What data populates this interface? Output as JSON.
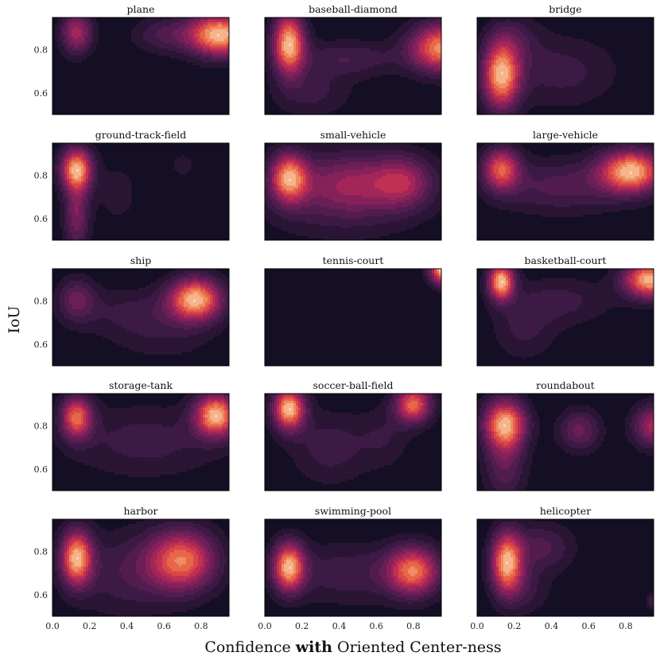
{
  "chart_data": {
    "type": "heatmap",
    "subtype": "kde-contour",
    "rows": 5,
    "cols": 3,
    "xlabel_parts": [
      "Confidence ",
      "with",
      " Oriented Center-ness"
    ],
    "ylabel": "IoU",
    "xlim": [
      0.0,
      0.95
    ],
    "ylim": [
      0.5,
      0.95
    ],
    "xticks": [
      0.0,
      0.2,
      0.4,
      0.6,
      0.8
    ],
    "xtick_labels": [
      "0.0",
      "0.2",
      "0.4",
      "0.6",
      "0.8"
    ],
    "yticks": [
      0.6,
      0.8
    ],
    "ytick_labels": [
      "0.6",
      "0.8"
    ],
    "colors": {
      "background": "#140f24",
      "levels": [
        "#140f24",
        "#2a1535",
        "#3d1a45",
        "#521d4e",
        "#6b1f56",
        "#86215a",
        "#a32659",
        "#c03052",
        "#d8474a",
        "#e86649",
        "#f08d64",
        "#f6b48b",
        "#fbd9bb"
      ]
    },
    "panels": [
      {
        "title": "plane",
        "blobs": [
          {
            "x": 0.13,
            "y": 0.88,
            "sx": 0.06,
            "sy": 0.07,
            "w": 0.55
          },
          {
            "x": 0.9,
            "y": 0.87,
            "sx": 0.12,
            "sy": 0.07,
            "w": 1.0
          },
          {
            "x": 0.6,
            "y": 0.87,
            "sx": 0.12,
            "sy": 0.06,
            "w": 0.25
          }
        ]
      },
      {
        "title": "baseball-diamond",
        "blobs": [
          {
            "x": 0.13,
            "y": 0.83,
            "sx": 0.06,
            "sy": 0.1,
            "w": 1.0
          },
          {
            "x": 0.95,
            "y": 0.81,
            "sx": 0.12,
            "sy": 0.08,
            "w": 0.9
          },
          {
            "x": 0.45,
            "y": 0.76,
            "sx": 0.2,
            "sy": 0.06,
            "w": 0.25
          },
          {
            "x": 0.25,
            "y": 0.6,
            "sx": 0.15,
            "sy": 0.08,
            "w": 0.2
          }
        ]
      },
      {
        "title": "bridge",
        "blobs": [
          {
            "x": 0.13,
            "y": 0.68,
            "sx": 0.07,
            "sy": 0.11,
            "w": 1.0
          },
          {
            "x": 0.45,
            "y": 0.7,
            "sx": 0.22,
            "sy": 0.12,
            "w": 0.22
          },
          {
            "x": 0.2,
            "y": 0.85,
            "sx": 0.1,
            "sy": 0.08,
            "w": 0.2
          }
        ]
      },
      {
        "title": "ground-track-field",
        "blobs": [
          {
            "x": 0.13,
            "y": 0.83,
            "sx": 0.06,
            "sy": 0.07,
            "w": 1.0
          },
          {
            "x": 0.13,
            "y": 0.62,
            "sx": 0.05,
            "sy": 0.12,
            "w": 0.45
          },
          {
            "x": 0.35,
            "y": 0.72,
            "sx": 0.08,
            "sy": 0.1,
            "w": 0.15
          },
          {
            "x": 0.7,
            "y": 0.85,
            "sx": 0.05,
            "sy": 0.04,
            "w": 0.15
          }
        ]
      },
      {
        "title": "small-vehicle",
        "blobs": [
          {
            "x": 0.13,
            "y": 0.79,
            "sx": 0.07,
            "sy": 0.08,
            "w": 1.0
          },
          {
            "x": 0.5,
            "y": 0.77,
            "sx": 0.25,
            "sy": 0.1,
            "w": 0.55
          },
          {
            "x": 0.75,
            "y": 0.77,
            "sx": 0.1,
            "sy": 0.08,
            "w": 0.4
          },
          {
            "x": 0.4,
            "y": 0.65,
            "sx": 0.3,
            "sy": 0.12,
            "w": 0.2
          }
        ]
      },
      {
        "title": "large-vehicle",
        "blobs": [
          {
            "x": 0.13,
            "y": 0.83,
            "sx": 0.07,
            "sy": 0.07,
            "w": 0.75
          },
          {
            "x": 0.83,
            "y": 0.82,
            "sx": 0.12,
            "sy": 0.07,
            "w": 1.0
          },
          {
            "x": 0.45,
            "y": 0.75,
            "sx": 0.25,
            "sy": 0.09,
            "w": 0.3
          }
        ]
      },
      {
        "title": "ship",
        "blobs": [
          {
            "x": 0.13,
            "y": 0.81,
            "sx": 0.07,
            "sy": 0.07,
            "w": 0.35
          },
          {
            "x": 0.77,
            "y": 0.81,
            "sx": 0.1,
            "sy": 0.07,
            "w": 1.0
          },
          {
            "x": 0.45,
            "y": 0.75,
            "sx": 0.25,
            "sy": 0.08,
            "w": 0.2
          },
          {
            "x": 0.6,
            "y": 0.62,
            "sx": 0.2,
            "sy": 0.08,
            "w": 0.12
          }
        ]
      },
      {
        "title": "tennis-court",
        "blobs": [
          {
            "x": 0.98,
            "y": 0.95,
            "sx": 0.06,
            "sy": 0.05,
            "w": 1.0
          }
        ]
      },
      {
        "title": "basketball-court",
        "blobs": [
          {
            "x": 0.13,
            "y": 0.89,
            "sx": 0.05,
            "sy": 0.06,
            "w": 1.0
          },
          {
            "x": 0.93,
            "y": 0.9,
            "sx": 0.1,
            "sy": 0.06,
            "w": 1.0
          },
          {
            "x": 0.45,
            "y": 0.8,
            "sx": 0.2,
            "sy": 0.08,
            "w": 0.2
          },
          {
            "x": 0.25,
            "y": 0.66,
            "sx": 0.12,
            "sy": 0.1,
            "w": 0.18
          }
        ]
      },
      {
        "title": "storage-tank",
        "blobs": [
          {
            "x": 0.13,
            "y": 0.84,
            "sx": 0.06,
            "sy": 0.07,
            "w": 0.8
          },
          {
            "x": 0.88,
            "y": 0.85,
            "sx": 0.08,
            "sy": 0.07,
            "w": 1.0
          },
          {
            "x": 0.5,
            "y": 0.73,
            "sx": 0.3,
            "sy": 0.12,
            "w": 0.22
          }
        ]
      },
      {
        "title": "soccer-ball-field",
        "blobs": [
          {
            "x": 0.13,
            "y": 0.88,
            "sx": 0.06,
            "sy": 0.07,
            "w": 1.0
          },
          {
            "x": 0.8,
            "y": 0.9,
            "sx": 0.07,
            "sy": 0.06,
            "w": 0.8
          },
          {
            "x": 0.35,
            "y": 0.7,
            "sx": 0.15,
            "sy": 0.12,
            "w": 0.22
          },
          {
            "x": 0.65,
            "y": 0.75,
            "sx": 0.1,
            "sy": 0.1,
            "w": 0.15
          }
        ]
      },
      {
        "title": "roundabout",
        "blobs": [
          {
            "x": 0.15,
            "y": 0.81,
            "sx": 0.08,
            "sy": 0.08,
            "w": 1.0
          },
          {
            "x": 0.55,
            "y": 0.78,
            "sx": 0.08,
            "sy": 0.07,
            "w": 0.4
          },
          {
            "x": 0.95,
            "y": 0.8,
            "sx": 0.08,
            "sy": 0.07,
            "w": 0.6
          },
          {
            "x": 0.15,
            "y": 0.62,
            "sx": 0.08,
            "sy": 0.12,
            "w": 0.35
          }
        ]
      },
      {
        "title": "harbor",
        "blobs": [
          {
            "x": 0.13,
            "y": 0.77,
            "sx": 0.06,
            "sy": 0.09,
            "w": 1.0
          },
          {
            "x": 0.7,
            "y": 0.76,
            "sx": 0.13,
            "sy": 0.1,
            "w": 0.85
          },
          {
            "x": 0.4,
            "y": 0.7,
            "sx": 0.2,
            "sy": 0.14,
            "w": 0.25
          }
        ]
      },
      {
        "title": "swimming-pool",
        "blobs": [
          {
            "x": 0.13,
            "y": 0.73,
            "sx": 0.06,
            "sy": 0.08,
            "w": 1.0
          },
          {
            "x": 0.8,
            "y": 0.71,
            "sx": 0.1,
            "sy": 0.08,
            "w": 0.85
          },
          {
            "x": 0.45,
            "y": 0.7,
            "sx": 0.25,
            "sy": 0.1,
            "w": 0.25
          }
        ]
      },
      {
        "title": "helicopter",
        "blobs": [
          {
            "x": 0.16,
            "y": 0.75,
            "sx": 0.06,
            "sy": 0.1,
            "w": 1.0
          },
          {
            "x": 0.35,
            "y": 0.82,
            "sx": 0.12,
            "sy": 0.08,
            "w": 0.3
          },
          {
            "x": 0.25,
            "y": 0.62,
            "sx": 0.1,
            "sy": 0.08,
            "w": 0.2
          },
          {
            "x": 0.95,
            "y": 0.57,
            "sx": 0.03,
            "sy": 0.03,
            "w": 0.25
          }
        ]
      }
    ]
  }
}
